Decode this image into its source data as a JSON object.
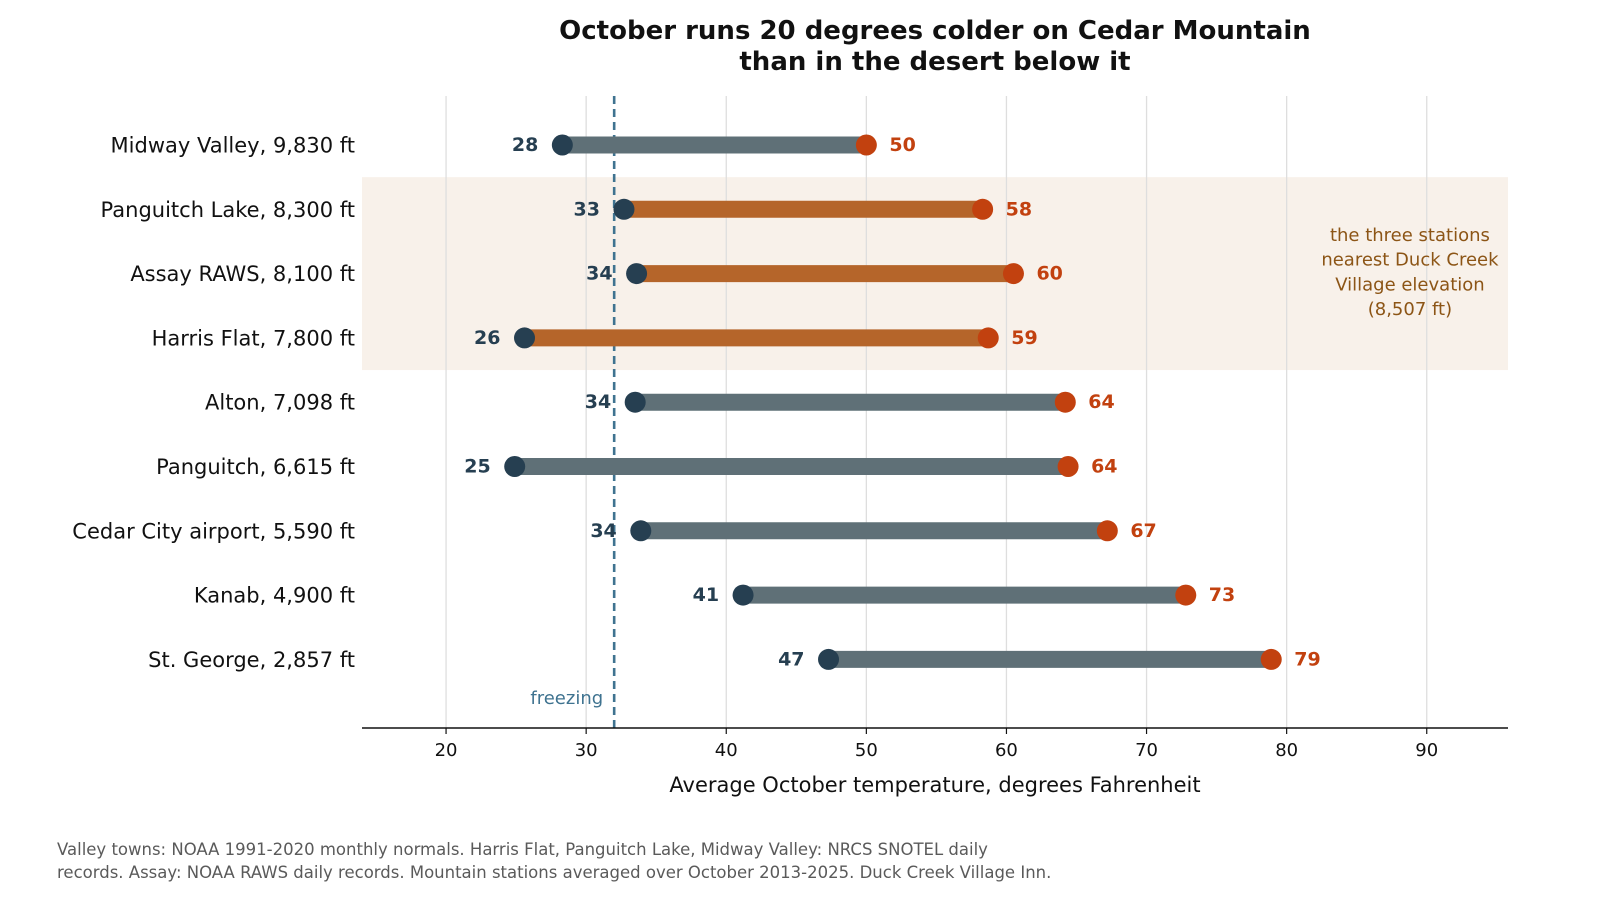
{
  "chart_data": {
    "type": "dumbbell",
    "title_lines": [
      "October runs 20 degrees colder on Cedar Mountain",
      "than in the desert below it"
    ],
    "xlabel": "Average October temperature, degrees Fahrenheit",
    "xlim": [
      14,
      95.8
    ],
    "xticks": [
      20,
      30,
      40,
      50,
      60,
      70,
      80,
      90
    ],
    "grid": "vertical",
    "reference_line": {
      "value": 32,
      "label": "freezing"
    },
    "stations": [
      {
        "name": "Midway Valley, 9,830 ft",
        "low": 28,
        "high": 50,
        "low_plot": 28.3,
        "high_plot": 50.0,
        "highlight": false
      },
      {
        "name": "Panguitch Lake, 8,300 ft",
        "low": 33,
        "high": 58,
        "low_plot": 32.7,
        "high_plot": 58.3,
        "highlight": true
      },
      {
        "name": "Assay RAWS, 8,100 ft",
        "low": 34,
        "high": 60,
        "low_plot": 33.6,
        "high_plot": 60.5,
        "highlight": true
      },
      {
        "name": "Harris Flat, 7,800 ft",
        "low": 26,
        "high": 59,
        "low_plot": 25.6,
        "high_plot": 58.7,
        "highlight": true
      },
      {
        "name": "Alton, 7,098 ft",
        "low": 34,
        "high": 64,
        "low_plot": 33.5,
        "high_plot": 64.2,
        "highlight": false
      },
      {
        "name": "Panguitch, 6,615 ft",
        "low": 25,
        "high": 64,
        "low_plot": 24.9,
        "high_plot": 64.4,
        "highlight": false
      },
      {
        "name": "Cedar City airport, 5,590 ft",
        "low": 34,
        "high": 67,
        "low_plot": 33.9,
        "high_plot": 67.2,
        "highlight": false
      },
      {
        "name": "Kanab, 4,900 ft",
        "low": 41,
        "high": 73,
        "low_plot": 41.2,
        "high_plot": 72.8,
        "highlight": false
      },
      {
        "name": "St. George, 2,857 ft",
        "low": 47,
        "high": 79,
        "low_plot": 47.3,
        "high_plot": 78.9,
        "highlight": false
      }
    ],
    "highlight_note": [
      "the three stations",
      "nearest Duck Creek",
      "Village elevation",
      "(8,507 ft)"
    ]
  },
  "source_note": [
    "Valley towns: NOAA 1991-2020 monthly normals. Harris Flat, Panguitch Lake, Midway Valley: NRCS SNOTEL daily",
    "records. Assay: NOAA RAWS daily records. Mountain stations averaged over October 2013-2025. Duck Creek Village Inn."
  ],
  "colors": {
    "bar_normal": "#5f7077",
    "bar_highlight": "#b5652a",
    "low_dot": "#263f51",
    "high_dot": "#c2410f",
    "freeze_line": "#3f7390",
    "highlight_band": "#f8f1ea",
    "note_text": "#8c5516",
    "grid": "#dedede"
  }
}
